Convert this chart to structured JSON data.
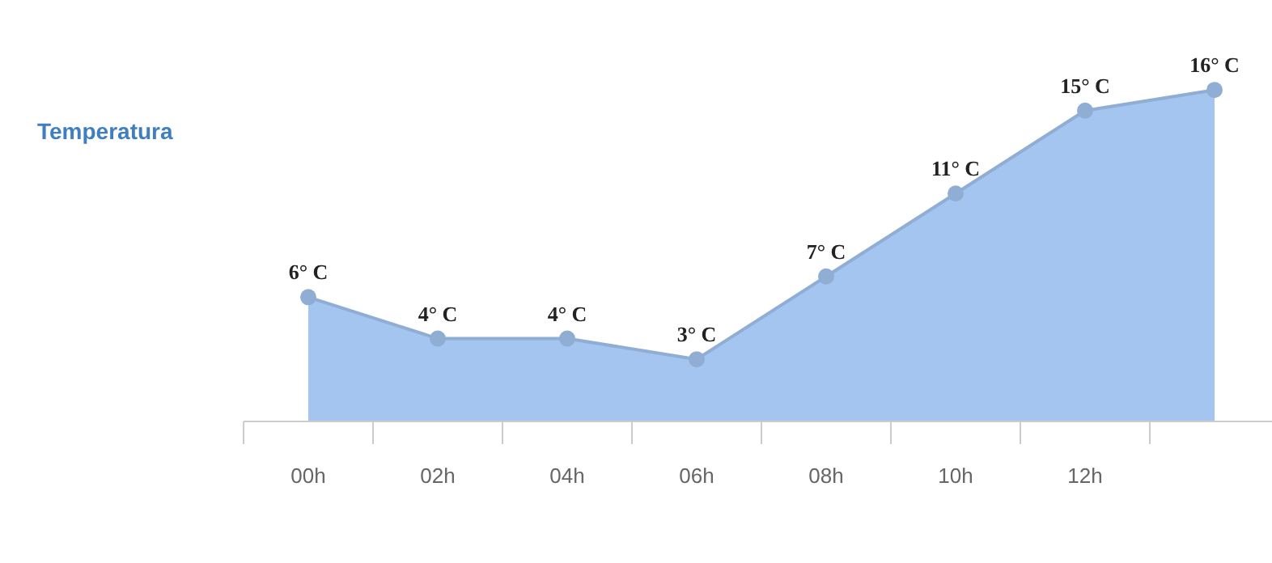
{
  "chart_data": {
    "type": "area",
    "ylabel": "Temperatura",
    "categories": [
      "00h",
      "02h",
      "04h",
      "06h",
      "08h",
      "10h",
      "12h",
      null
    ],
    "values": [
      6,
      4,
      4,
      3,
      7,
      11,
      15,
      16
    ],
    "value_labels": [
      "6° C",
      "4° C",
      "4° C",
      "3° C",
      "7° C",
      "11° C",
      "15° C",
      "16° C"
    ],
    "color": "#a4c5f0",
    "marker": "circle"
  }
}
